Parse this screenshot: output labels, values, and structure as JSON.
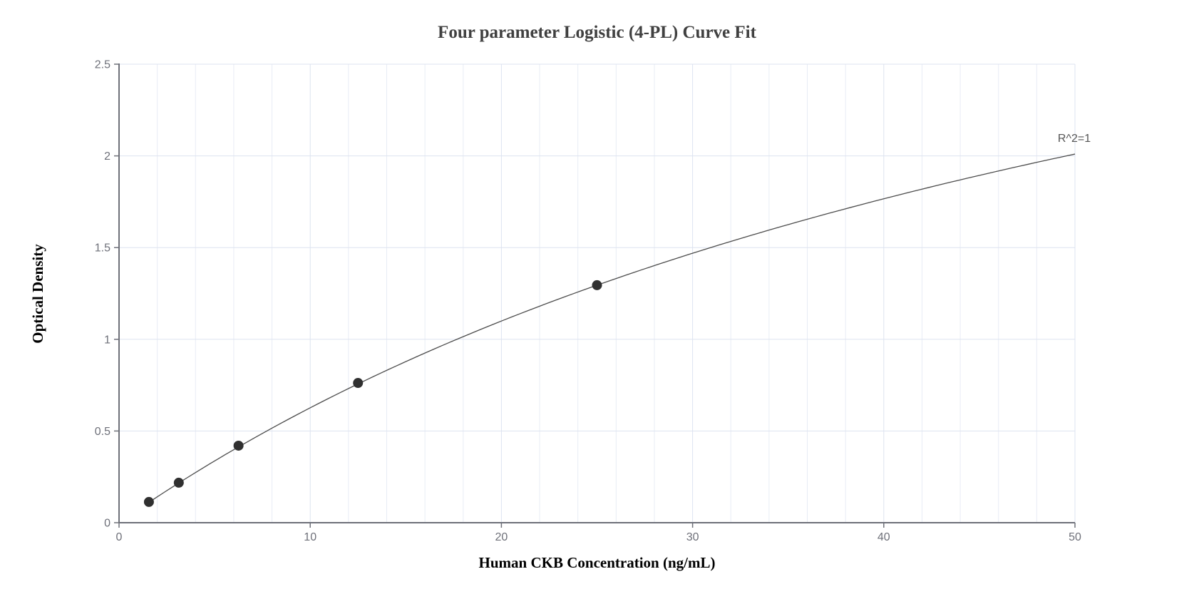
{
  "chart_data": {
    "type": "scatter",
    "title": "Four parameter Logistic (4-PL) Curve Fit",
    "xlabel": "Human CKB Concentration (ng/mL)",
    "ylabel": "Optical Density",
    "xlim": [
      0,
      50
    ],
    "ylim": [
      0,
      2.5
    ],
    "x_ticks": [
      0,
      10,
      20,
      30,
      40,
      50
    ],
    "y_ticks": [
      0,
      0.5,
      1,
      1.5,
      2,
      2.5
    ],
    "x_grid_step": 2,
    "y_grid_step": 0.5,
    "grid_on": true,
    "legend": "none",
    "points": [
      {
        "x": 1.5625,
        "y": 0.113
      },
      {
        "x": 3.125,
        "y": 0.218
      },
      {
        "x": 6.25,
        "y": 0.42
      },
      {
        "x": 12.5,
        "y": 0.762
      },
      {
        "x": 25,
        "y": 1.295
      }
    ],
    "fit": {
      "model": "4PL",
      "a": 0,
      "b": 1,
      "c": 61.6,
      "d": 4.486,
      "curve_x_start": 1.5625,
      "curve_x_end": 50,
      "curve_y_end": 2.01,
      "annotation": "R^2=1"
    },
    "colors": {
      "background": "#ffffff",
      "grid_minor": "#E8ECF5",
      "grid_major": "#DDE3F0",
      "axis": "#6E7079",
      "tick_label": "#6E7079",
      "curve": "#4d4d4d",
      "point": "#303030",
      "title": "#404040",
      "axis_name": "#000000",
      "annotation": "#555555"
    }
  }
}
